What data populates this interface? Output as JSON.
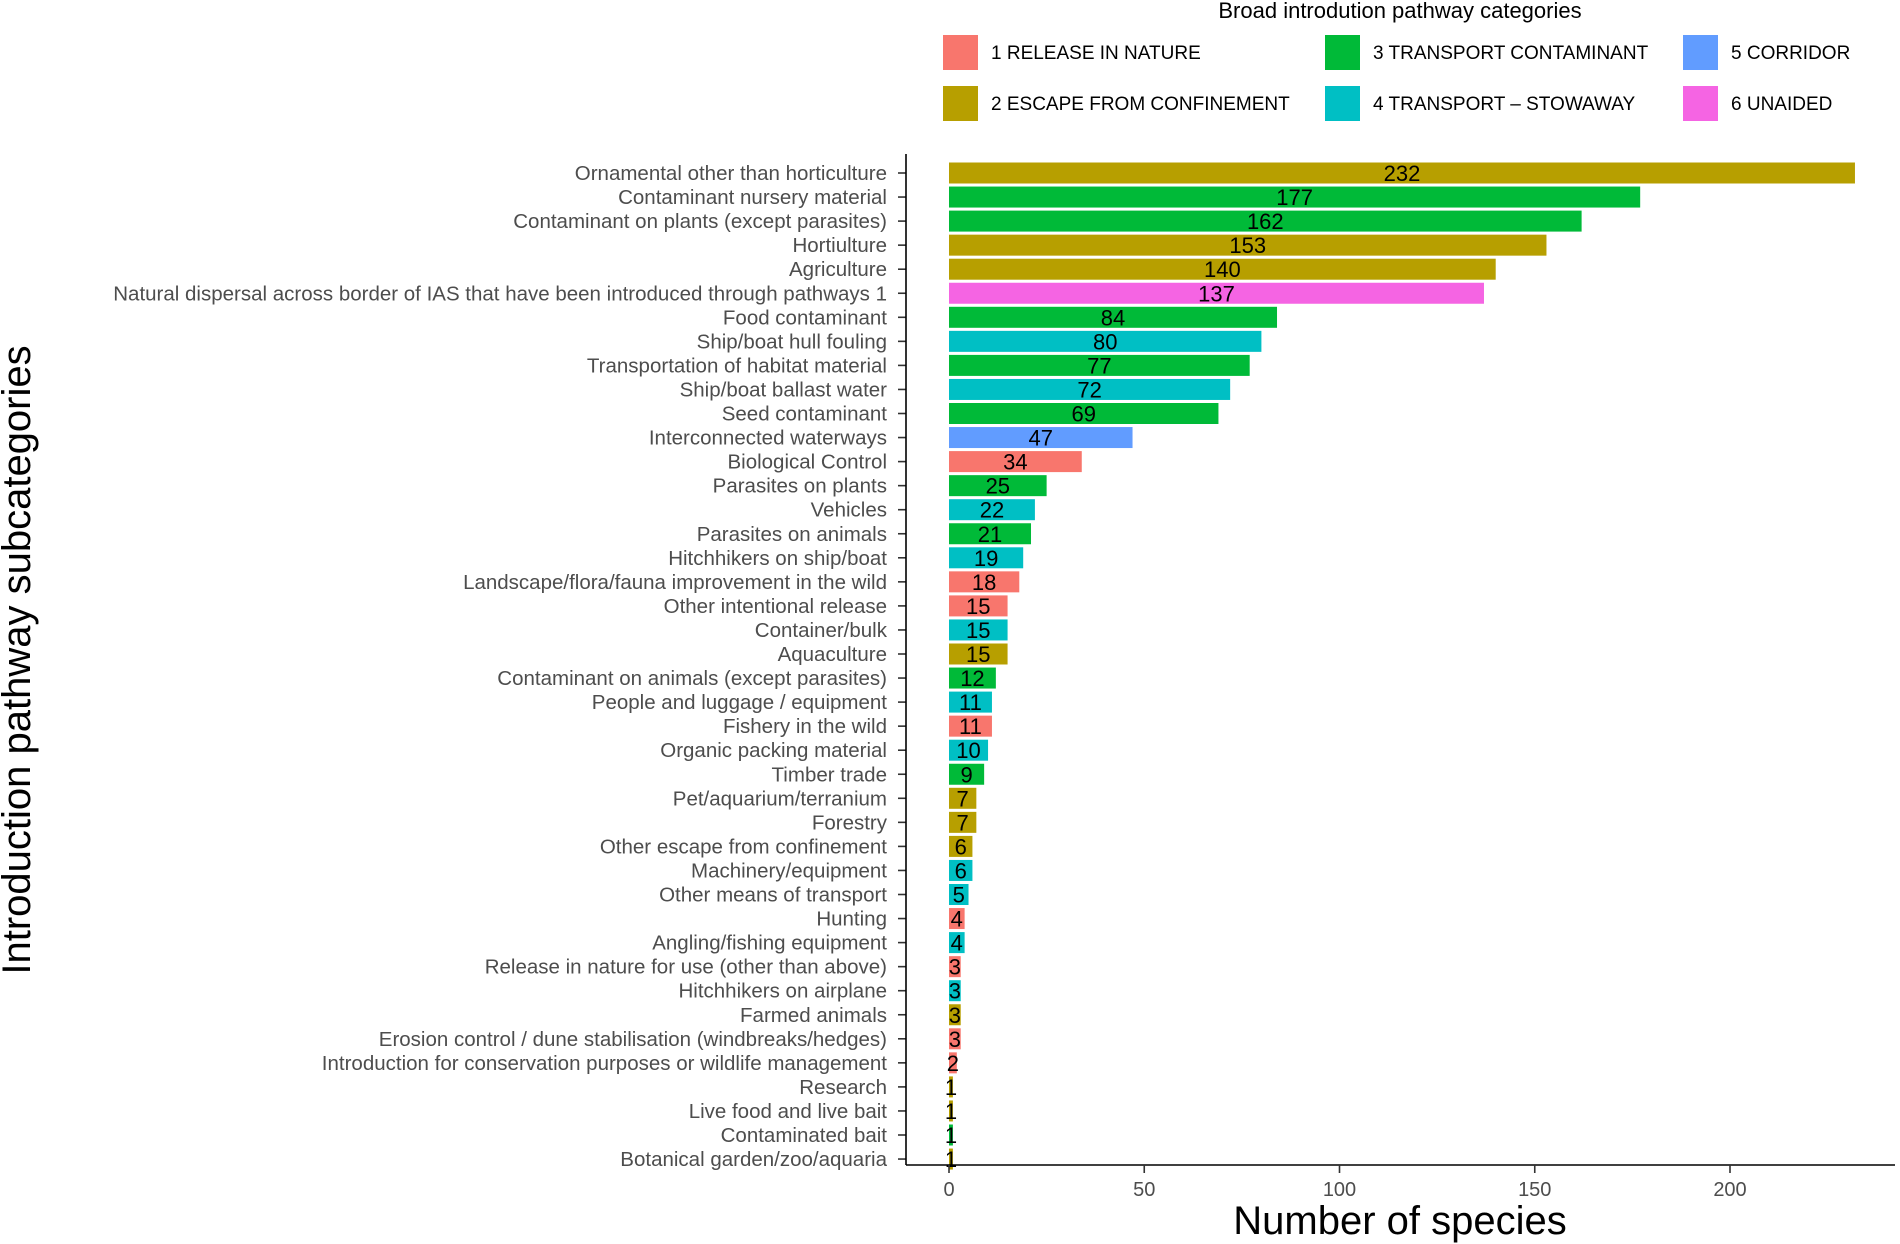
{
  "chart_data": {
    "type": "bar",
    "orientation": "horizontal",
    "xlabel": "Number of species",
    "ylabel": "Introduction pathway subcategories",
    "xlim": [
      0,
      240
    ],
    "x_ticks": [
      0,
      50,
      100,
      150,
      200
    ],
    "grid": false,
    "legend": {
      "title": "Broad introdution pathway categories",
      "placement": "top",
      "items": [
        {
          "key": "1",
          "label": "1 RELEASE IN NATURE",
          "color": "#F8766D"
        },
        {
          "key": "2",
          "label": "2 ESCAPE FROM CONFINEMENT",
          "color": "#B79F00"
        },
        {
          "key": "3",
          "label": "3 TRANSPORT CONTAMINANT",
          "color": "#00BA38"
        },
        {
          "key": "4",
          "label": "4 TRANSPORT – STOWAWAY",
          "color": "#00BFC4"
        },
        {
          "key": "5",
          "label": "5 CORRIDOR",
          "color": "#619CFF"
        },
        {
          "key": "6",
          "label": "6 UNAIDED",
          "color": "#F564E3"
        }
      ]
    },
    "bars": [
      {
        "label": "Ornamental other than horticulture",
        "value": 232,
        "category": "2"
      },
      {
        "label": "Contaminant nursery material",
        "value": 177,
        "category": "3"
      },
      {
        "label": "Contaminant on plants (except parasites)",
        "value": 162,
        "category": "3"
      },
      {
        "label": "Hortiulture",
        "value": 153,
        "category": "2"
      },
      {
        "label": "Agriculture",
        "value": 140,
        "category": "2"
      },
      {
        "label": "Natural dispersal across border of IAS that have been introduced through pathways 1",
        "value": 137,
        "category": "6"
      },
      {
        "label": "Food contaminant",
        "value": 84,
        "category": "3"
      },
      {
        "label": "Ship/boat hull fouling",
        "value": 80,
        "category": "4"
      },
      {
        "label": "Transportation of habitat material",
        "value": 77,
        "category": "3"
      },
      {
        "label": "Ship/boat ballast water",
        "value": 72,
        "category": "4"
      },
      {
        "label": "Seed contaminant",
        "value": 69,
        "category": "3"
      },
      {
        "label": "Interconnected waterways",
        "value": 47,
        "category": "5"
      },
      {
        "label": "Biological Control",
        "value": 34,
        "category": "1"
      },
      {
        "label": "Parasites on plants",
        "value": 25,
        "category": "3"
      },
      {
        "label": "Vehicles",
        "value": 22,
        "category": "4"
      },
      {
        "label": "Parasites on animals",
        "value": 21,
        "category": "3"
      },
      {
        "label": "Hitchhikers on ship/boat",
        "value": 19,
        "category": "4"
      },
      {
        "label": "Landscape/flora/fauna improvement in the wild",
        "value": 18,
        "category": "1"
      },
      {
        "label": "Other intentional release",
        "value": 15,
        "category": "1"
      },
      {
        "label": "Container/bulk",
        "value": 15,
        "category": "4"
      },
      {
        "label": "Aquaculture",
        "value": 15,
        "category": "2"
      },
      {
        "label": "Contaminant on animals (except parasites)",
        "value": 12,
        "category": "3"
      },
      {
        "label": "People and luggage / equipment",
        "value": 11,
        "category": "4"
      },
      {
        "label": "Fishery in the wild",
        "value": 11,
        "category": "1"
      },
      {
        "label": "Organic packing material",
        "value": 10,
        "category": "4"
      },
      {
        "label": "Timber trade",
        "value": 9,
        "category": "3"
      },
      {
        "label": "Pet/aquarium/terranium",
        "value": 7,
        "category": "2"
      },
      {
        "label": "Forestry",
        "value": 7,
        "category": "2"
      },
      {
        "label": "Other escape from confinement",
        "value": 6,
        "category": "2"
      },
      {
        "label": "Machinery/equipment",
        "value": 6,
        "category": "4"
      },
      {
        "label": "Other means of transport",
        "value": 5,
        "category": "4"
      },
      {
        "label": "Hunting",
        "value": 4,
        "category": "1"
      },
      {
        "label": "Angling/fishing equipment",
        "value": 4,
        "category": "4"
      },
      {
        "label": "Release in nature for use (other than above)",
        "value": 3,
        "category": "1"
      },
      {
        "label": "Hitchhikers on airplane",
        "value": 3,
        "category": "4"
      },
      {
        "label": "Farmed animals",
        "value": 3,
        "category": "2"
      },
      {
        "label": "Erosion control / dune stabilisation (windbreaks/hedges)",
        "value": 3,
        "category": "1"
      },
      {
        "label": "Introduction for conservation purposes or wildlife management",
        "value": 2,
        "category": "1"
      },
      {
        "label": "Research",
        "value": 1,
        "category": "2"
      },
      {
        "label": "Live food and live bait",
        "value": 1,
        "category": "2"
      },
      {
        "label": "Contaminated bait",
        "value": 1,
        "category": "3"
      },
      {
        "label": "Botanical garden/zoo/aquaria",
        "value": 1,
        "category": "2"
      }
    ]
  }
}
